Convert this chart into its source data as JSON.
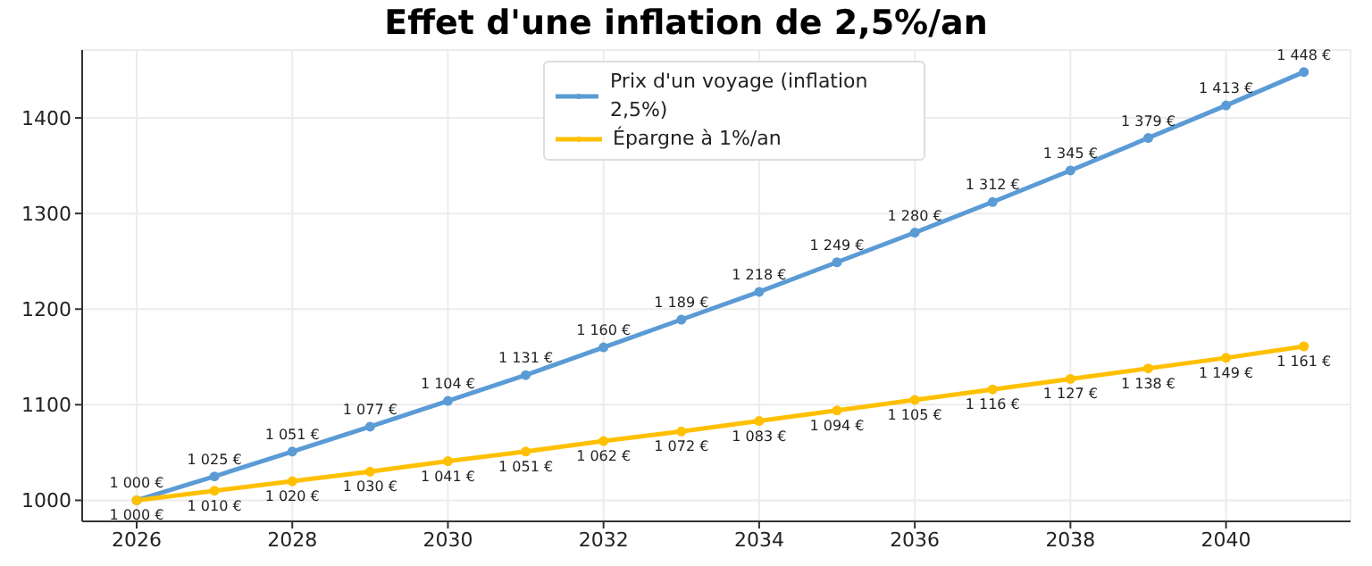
{
  "chart_data": {
    "type": "line",
    "title": "Effet d'une inflation de 2,5%/an",
    "x": [
      2026,
      2027,
      2028,
      2029,
      2030,
      2031,
      2032,
      2033,
      2034,
      2035,
      2036,
      2037,
      2038,
      2039,
      2040,
      2041
    ],
    "series": [
      {
        "name": "Prix d'un voyage (inflation 2,5%)",
        "color": "#5b9bd5",
        "values": [
          1000,
          1025,
          1051,
          1077,
          1104,
          1131,
          1160,
          1189,
          1218,
          1249,
          1280,
          1312,
          1345,
          1379,
          1413,
          1448
        ],
        "value_labels": [
          "1 000 €",
          "1 025 €",
          "1 051 €",
          "1 077 €",
          "1 104 €",
          "1 131 €",
          "1 160 €",
          "1 189 €",
          "1 218 €",
          "1 249 €",
          "1 280 €",
          "1 312 €",
          "1 345 €",
          "1 379 €",
          "1 413 €",
          "1 448 €"
        ]
      },
      {
        "name": "Épargne à 1%/an",
        "color": "#ffc000",
        "values": [
          1000,
          1010,
          1020,
          1030,
          1041,
          1051,
          1062,
          1072,
          1083,
          1094,
          1105,
          1116,
          1127,
          1138,
          1149,
          1161
        ],
        "value_labels": [
          "1 000 €",
          "1 010 €",
          "1 020 €",
          "1 030 €",
          "1 041 €",
          "1 051 €",
          "1 062 €",
          "1 072 €",
          "1 083 €",
          "1 094 €",
          "1 105 €",
          "1 116 €",
          "1 127 €",
          "1 138 €",
          "1 149 €",
          "1 161 €"
        ]
      }
    ],
    "xlim": [
      2025.3,
      2041.6
    ],
    "xticks": [
      2026,
      2028,
      2030,
      2032,
      2034,
      2036,
      2038,
      2040
    ],
    "ylim": [
      978,
      1471
    ],
    "yticks": [
      1000,
      1100,
      1200,
      1300,
      1400
    ],
    "grid": true,
    "legend": "top",
    "marker": "circle",
    "line_style": "solid"
  }
}
